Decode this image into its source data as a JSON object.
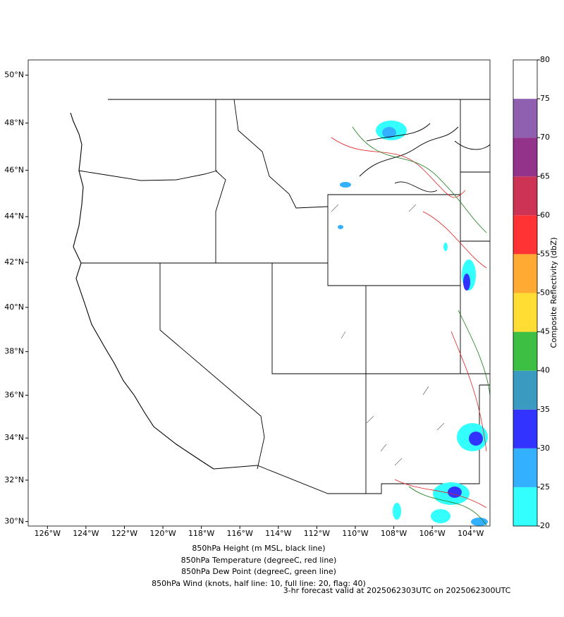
{
  "map": {
    "lon_range": [
      -127,
      -103
    ],
    "lat_range": [
      29.78,
      50.63
    ],
    "lon_ticks": [
      {
        "value": -126,
        "label": "126°W"
      },
      {
        "value": -124,
        "label": "124°W"
      },
      {
        "value": -122,
        "label": "122°W"
      },
      {
        "value": -120,
        "label": "120°W"
      },
      {
        "value": -118,
        "label": "118°W"
      },
      {
        "value": -116,
        "label": "116°W"
      },
      {
        "value": -114,
        "label": "114°W"
      },
      {
        "value": -112,
        "label": "112°W"
      },
      {
        "value": -110,
        "label": "110°W"
      },
      {
        "value": -108,
        "label": "108°W"
      },
      {
        "value": -106,
        "label": "106°W"
      },
      {
        "value": -104,
        "label": "104°W"
      }
    ],
    "lat_ticks": [
      {
        "value": 30,
        "label": "30°N"
      },
      {
        "value": 32,
        "label": "32°N"
      },
      {
        "value": 34,
        "label": "34°N"
      },
      {
        "value": 36,
        "label": "36°N"
      },
      {
        "value": 38,
        "label": "38°N"
      },
      {
        "value": 40,
        "label": "40°N"
      },
      {
        "value": 42,
        "label": "42°N"
      },
      {
        "value": 44,
        "label": "44°N"
      },
      {
        "value": 46,
        "label": "46°N"
      },
      {
        "value": 48,
        "label": "48°N"
      },
      {
        "value": 50,
        "label": "50°N"
      }
    ]
  },
  "colorbar": {
    "label": "Composite Reflectivity (dbZ)",
    "levels": [
      20,
      25,
      30,
      35,
      40,
      45,
      50,
      55,
      60,
      65,
      70,
      75,
      80
    ],
    "colors": [
      "#33ffff",
      "#33b0ff",
      "#3333ff",
      "#3a9abf",
      "#3dbf44",
      "#ffdd33",
      "#ffaa33",
      "#ff3333",
      "#cc3355",
      "#93338a",
      "#9060b0",
      "#ffffff"
    ]
  },
  "legend": [
    {
      "text": "850hPa Height (m MSL, black line)",
      "color": "#000000"
    },
    {
      "text": "850hPa Temperature (degreeC, red line)",
      "color": "#ff0000"
    },
    {
      "text": "850hPa Dew Point (degreeC, green line)",
      "color": "#008000"
    },
    {
      "text": "850hPa Wind (knots, half line: 10, full line: 20, flag: 40)",
      "color": "#808080"
    }
  ],
  "forecast": {
    "text": "3-hr forecast valid at 2025062303UTC on 2025062300UTC",
    "color": "#ff0000"
  }
}
